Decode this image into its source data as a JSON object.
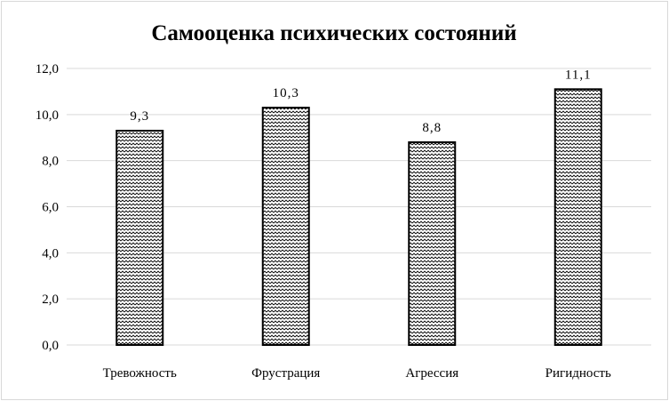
{
  "chart_data": {
    "type": "bar",
    "title": "Самооценка психических состояний",
    "categories": [
      "Тревожность",
      "Фрустрация",
      "Агрессия",
      "Ригидность"
    ],
    "values": [
      9.3,
      10.3,
      8.8,
      11.1
    ],
    "data_labels": [
      "9,3",
      "10,3",
      "8,8",
      "11,1"
    ],
    "y_ticks": [
      "0,0",
      "2,0",
      "4,0",
      "6,0",
      "8,0",
      "10,0",
      "12,0"
    ],
    "ylim": [
      0,
      12
    ],
    "grid": true,
    "legend": "none",
    "bar_fill": "hatched-diagonal",
    "colors": {
      "bar_stroke": "#000000",
      "hatch": "#000000",
      "grid": "#d9d9d9"
    }
  }
}
